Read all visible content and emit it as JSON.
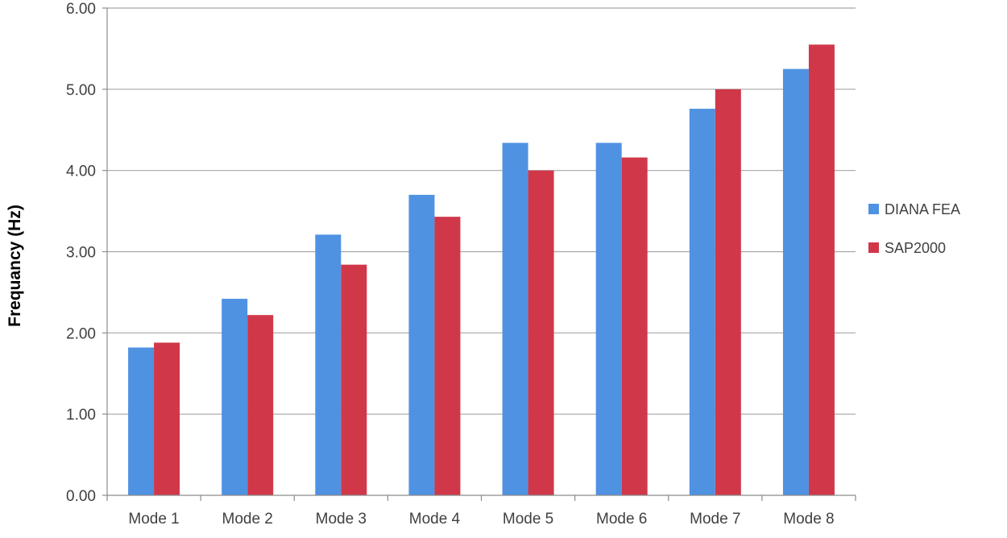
{
  "chart_data": {
    "type": "bar",
    "title": "",
    "xlabel": "",
    "ylabel": "Frequancy (Hz)",
    "ylim": [
      0,
      6
    ],
    "yticks": [
      "0.00",
      "1.00",
      "2.00",
      "3.00",
      "4.00",
      "5.00",
      "6.00"
    ],
    "grid": true,
    "legend_position": "right",
    "categories": [
      "Mode 1",
      "Mode 2",
      "Mode 3",
      "Mode 4",
      "Mode 5",
      "Mode 6",
      "Mode 7",
      "Mode 8"
    ],
    "series": [
      {
        "name": "DIANA FEA",
        "color": "#4F92E2",
        "values": [
          1.82,
          2.42,
          3.21,
          3.7,
          4.34,
          4.34,
          4.76,
          5.25
        ]
      },
      {
        "name": "SAP2000",
        "color": "#D0384A",
        "values": [
          1.88,
          2.22,
          2.84,
          3.43,
          4.0,
          4.16,
          5.0,
          5.55
        ]
      }
    ]
  }
}
